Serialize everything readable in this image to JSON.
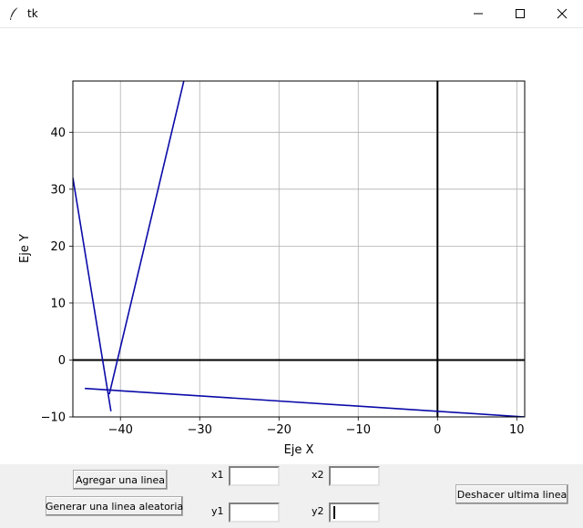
{
  "window": {
    "title": "tk",
    "icon": "feather-icon"
  },
  "window_controls": [
    "minimize-icon",
    "maximize-icon",
    "close-icon"
  ],
  "chart_data": {
    "type": "line",
    "xlabel": "Eje X",
    "ylabel": "Eje Y",
    "xlim": [
      -46,
      11
    ],
    "ylim": [
      -10,
      49
    ],
    "xticks": [
      -40,
      -30,
      -20,
      -10,
      0,
      10
    ],
    "yticks": [
      -10,
      0,
      10,
      20,
      30,
      40
    ],
    "xtick_labels": [
      "−40",
      "−30",
      "−20",
      "−10",
      "0",
      "10"
    ],
    "ytick_labels": [
      "−10",
      "0",
      "10",
      "20",
      "30",
      "40"
    ],
    "grid": true,
    "axis_lines": {
      "x0": true,
      "y0": true
    },
    "line_color": "#0a0aa8",
    "series": [
      {
        "points": [
          [
            -46,
            32
          ],
          [
            -41.2,
            -9
          ]
        ]
      },
      {
        "points": [
          [
            -41.4,
            -6
          ],
          [
            -32,
            49
          ]
        ]
      },
      {
        "points": [
          [
            -44.5,
            -5
          ],
          [
            11,
            -10
          ]
        ]
      }
    ]
  },
  "controls": {
    "add_button": "Agregar una linea",
    "random_button": "Generar una linea aleatoria",
    "undo_button": "Deshacer ultima linea",
    "x1_label": "x1",
    "x2_label": "x2",
    "y1_label": "y1",
    "y2_label": "y2",
    "x1_value": "",
    "x2_value": "",
    "y1_value": "",
    "y2_value": ""
  }
}
